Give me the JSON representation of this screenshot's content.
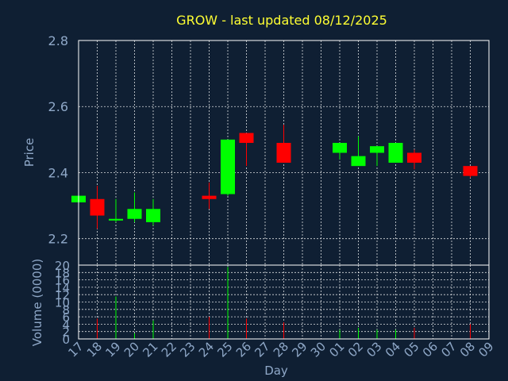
{
  "chart_data": {
    "type": "candlestick",
    "title": "GROW - last updated 08/12/2025",
    "xlabel": "Day",
    "price_panel": {
      "ylabel": "Price",
      "ylim": [
        2.12,
        2.8
      ],
      "yticks": [
        2.2,
        2.4,
        2.6,
        2.8
      ],
      "grid": true
    },
    "volume_panel": {
      "ylabel": "Volume (0000)",
      "ylim": [
        0,
        20
      ],
      "yticks": [
        0,
        2,
        4,
        6,
        8,
        10,
        12,
        14,
        16,
        18,
        20
      ],
      "grid": true
    },
    "x_tick_labels": [
      "17",
      "18",
      "19",
      "20",
      "21",
      "22",
      "23",
      "24",
      "25",
      "26",
      "27",
      "28",
      "29",
      "30",
      "01",
      "02",
      "03",
      "04",
      "05",
      "06",
      "07",
      "08",
      "09"
    ],
    "colors": {
      "up": "#00ff00",
      "down": "#ff0000"
    },
    "candles": [
      {
        "day": "17",
        "open": 2.31,
        "high": 2.33,
        "low": 2.31,
        "close": 2.33,
        "volume": 0.5
      },
      {
        "day": "18",
        "open": 2.32,
        "high": 2.36,
        "low": 2.23,
        "close": 2.27,
        "volume": 5.5
      },
      {
        "day": "19",
        "open": 2.255,
        "high": 2.32,
        "low": 2.25,
        "close": 2.26,
        "volume": 11.5
      },
      {
        "day": "20",
        "open": 2.26,
        "high": 2.34,
        "low": 2.25,
        "close": 2.29,
        "volume": 1.5
      },
      {
        "day": "21",
        "open": 2.25,
        "high": 2.32,
        "low": 2.24,
        "close": 2.29,
        "volume": 5.0
      },
      {
        "day": "24",
        "open": 2.33,
        "high": 2.37,
        "low": 2.29,
        "close": 2.32,
        "volume": 6.0
      },
      {
        "day": "25",
        "open": 2.335,
        "high": 2.5,
        "low": 2.33,
        "close": 2.5,
        "volume": 19.5
      },
      {
        "day": "26",
        "open": 2.52,
        "high": 2.52,
        "low": 2.42,
        "close": 2.49,
        "volume": 5.5
      },
      {
        "day": "28",
        "open": 2.49,
        "high": 2.545,
        "low": 2.43,
        "close": 2.43,
        "volume": 4.5
      },
      {
        "day": "01",
        "open": 2.46,
        "high": 2.49,
        "low": 2.44,
        "close": 2.49,
        "volume": 2.5
      },
      {
        "day": "02",
        "open": 2.42,
        "high": 2.51,
        "low": 2.42,
        "close": 2.45,
        "volume": 3.0
      },
      {
        "day": "03",
        "open": 2.46,
        "high": 2.48,
        "low": 2.42,
        "close": 2.48,
        "volume": 2.5
      },
      {
        "day": "04",
        "open": 2.43,
        "high": 2.49,
        "low": 2.43,
        "close": 2.49,
        "volume": 2.5
      },
      {
        "day": "05",
        "open": 2.46,
        "high": 2.47,
        "low": 2.41,
        "close": 2.43,
        "volume": 3.0
      },
      {
        "day": "08",
        "open": 2.42,
        "high": 2.42,
        "low": 2.385,
        "close": 2.39,
        "volume": 4.0
      }
    ]
  }
}
